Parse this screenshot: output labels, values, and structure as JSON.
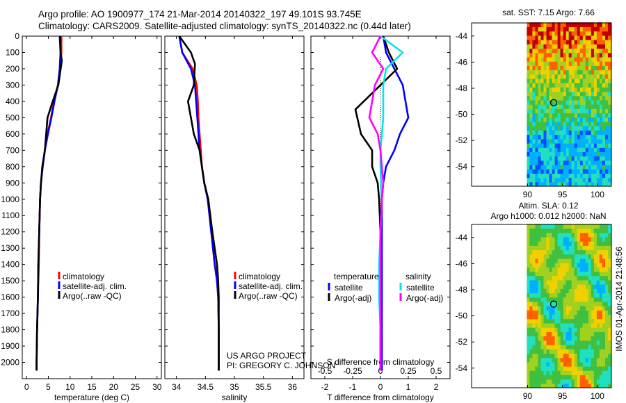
{
  "header": {
    "line1": "Argo profile: AO 1900977_174 21-Mar-2014 20140322_197 49.101S 93.745E",
    "line2": "Climatology: CARS2009. Satellite-adjusted climatology: synTS_20140322.nc (0.44d later)"
  },
  "colors": {
    "climatology": "#ff0000",
    "satellite": "#0000ff",
    "argo": "#000000",
    "salinity_satellite": "#00e5ee",
    "salinity_argo": "#ff00ff"
  },
  "footer": {
    "project": "US ARGO PROJECT",
    "pi": "PI: GREGORY C. JOHNSON",
    "imos_stamp": "IMOS 01-Apr-2014 21:48:56"
  },
  "chart_data": [
    {
      "type": "line",
      "xlabel": "temperature (deg C)",
      "ylabel": "",
      "xlim": [
        -1,
        31
      ],
      "ylim": [
        2100,
        0
      ],
      "xticks": [
        "0",
        "5",
        "10",
        "15",
        "20",
        "25",
        "30"
      ],
      "yticks": [
        "0",
        "100",
        "200",
        "300",
        "400",
        "500",
        "600",
        "700",
        "800",
        "900",
        "1000",
        "1100",
        "1200",
        "1300",
        "1400",
        "1500",
        "1600",
        "1700",
        "1800",
        "1900",
        "2000"
      ],
      "legend": [
        "climatology",
        "satellite-adj. clim.",
        "Argo(..raw -QC)"
      ],
      "legend_position": "lower-middle",
      "series": [
        {
          "name": "climatology",
          "color": "#ff0000",
          "x": [
            8,
            8,
            7.7,
            7.2,
            6.3,
            5.6,
            4.8,
            4.2,
            3.7,
            3.3,
            3.1,
            2.9,
            2.8,
            2.6,
            2.5,
            2.4,
            2.3,
            2.3
          ],
          "y": [
            0,
            100,
            200,
            300,
            400,
            500,
            600,
            700,
            800,
            900,
            1000,
            1200,
            1400,
            1600,
            1700,
            1800,
            2000,
            2050
          ]
        },
        {
          "name": "satellite-adj. clim.",
          "color": "#0000ff",
          "x": [
            7.6,
            7.8,
            7.6,
            7.2,
            6.4,
            5.7,
            4.9,
            4.2,
            3.7,
            3.3,
            3.1,
            2.9,
            2.7,
            2.6,
            2.5,
            2.4,
            2.3,
            2.3
          ],
          "y": [
            0,
            100,
            200,
            300,
            400,
            500,
            600,
            700,
            800,
            900,
            1000,
            1200,
            1400,
            1600,
            1700,
            1800,
            2000,
            2050
          ]
        },
        {
          "name": "Argo(..raw -QC)",
          "color": "#000000",
          "x": [
            7.7,
            7.8,
            8.1,
            7.3,
            6.0,
            4.8,
            4.5,
            4.2,
            3.6,
            3.3,
            3.1,
            2.9,
            2.7,
            2.6,
            2.5,
            2.4,
            2.3,
            2.3
          ],
          "y": [
            0,
            100,
            150,
            300,
            400,
            500,
            600,
            700,
            800,
            900,
            1000,
            1200,
            1400,
            1600,
            1700,
            1800,
            2000,
            2050
          ]
        }
      ]
    },
    {
      "type": "line",
      "xlabel": "salinity",
      "xlim": [
        33.8,
        36.2
      ],
      "ylim": [
        2100,
        0
      ],
      "xticks": [
        "34",
        "34.5",
        "35",
        "35.5",
        "36"
      ],
      "legend": [
        "climatology",
        "satellite-adj. clim.",
        "Argo(..raw -QC)"
      ],
      "legend_position": "lower-middle",
      "series": [
        {
          "name": "climatology",
          "color": "#ff0000",
          "x": [
            34.05,
            34.1,
            34.28,
            34.35,
            34.37,
            34.38,
            34.4,
            34.42,
            34.44,
            34.48,
            34.54,
            34.6,
            34.66,
            34.7,
            34.72,
            34.73,
            34.73,
            34.73
          ],
          "y": [
            0,
            100,
            200,
            300,
            400,
            500,
            600,
            700,
            800,
            900,
            1000,
            1200,
            1400,
            1500,
            1600,
            1800,
            2000,
            2050
          ]
        },
        {
          "name": "satellite-adj. clim.",
          "color": "#0000ff",
          "x": [
            34.05,
            34.1,
            34.25,
            34.32,
            34.34,
            34.36,
            34.38,
            34.4,
            34.44,
            34.48,
            34.54,
            34.6,
            34.66,
            34.7,
            34.72,
            34.73,
            34.73,
            34.73
          ],
          "y": [
            0,
            100,
            200,
            300,
            400,
            500,
            600,
            700,
            800,
            900,
            1000,
            1200,
            1400,
            1500,
            1600,
            1800,
            2000,
            2050
          ]
        },
        {
          "name": "Argo(..raw -QC)",
          "color": "#000000",
          "x": [
            34.05,
            34.25,
            34.32,
            34.3,
            34.2,
            34.25,
            34.3,
            34.4,
            34.44,
            34.48,
            34.55,
            34.62,
            34.7,
            34.72,
            34.73,
            34.73,
            34.73,
            34.73
          ],
          "y": [
            0,
            100,
            170,
            300,
            400,
            500,
            600,
            700,
            800,
            900,
            1000,
            1200,
            1400,
            1500,
            1600,
            1800,
            2000,
            2050
          ]
        }
      ]
    },
    {
      "type": "line",
      "xlabel": "T difference from climatology",
      "xlabel2": "S difference from climatology",
      "xlim": [
        -2.5,
        2.5
      ],
      "ylim": [
        2100,
        0
      ],
      "xticks": [
        "-2",
        "-1",
        "0",
        "1",
        "2"
      ],
      "xticks2": [
        "-0.5",
        "-0.25",
        "0",
        "0.25",
        "0.5"
      ],
      "legend_temperature_title": "temperature",
      "legend_salinity_title": "salinity",
      "legend": [
        "satellite",
        "Argo(-adj)",
        "satellite",
        "Argo(-adj)"
      ],
      "legend_position": "lower-middle",
      "series": [
        {
          "name": "temperature satellite",
          "color": "#0000ff",
          "x": [
            0.1,
            0.2,
            0.5,
            0.8,
            1.0,
            0.7,
            0.5,
            0.2,
            0.1,
            0.05,
            0.05,
            0.05,
            0.05,
            0.05,
            0.05,
            0.05
          ],
          "y": [
            0,
            100,
            200,
            300,
            500,
            600,
            700,
            800,
            900,
            1000,
            1200,
            1400,
            1600,
            1800,
            2000,
            2050
          ]
        },
        {
          "name": "temperature Argo(-adj)",
          "color": "#000000",
          "x": [
            0.1,
            0.3,
            0.6,
            0.0,
            -0.9,
            -0.7,
            -0.3,
            -0.3,
            -0.1,
            -0.05,
            0.0,
            0.0,
            0.0,
            0.0,
            0.0,
            0.0
          ],
          "y": [
            0,
            100,
            200,
            300,
            450,
            600,
            700,
            800,
            900,
            1000,
            1200,
            1400,
            1600,
            1800,
            2000,
            2050
          ]
        },
        {
          "name": "salinity satellite",
          "color": "#00e5ee",
          "x": [
            0.0,
            0.8,
            0.2,
            0.1,
            0.1,
            0.05,
            0.0,
            0.0,
            0.02,
            0.05,
            0.0,
            -0.05,
            -0.05,
            0.0,
            0.0,
            0.0
          ],
          "y": [
            0,
            100,
            200,
            300,
            500,
            600,
            700,
            800,
            900,
            1000,
            1200,
            1400,
            1600,
            1800,
            2000,
            2050
          ]
        },
        {
          "name": "salinity Argo(-adj)",
          "color": "#ff00ff",
          "x": [
            0.0,
            -0.3,
            0.1,
            -0.2,
            -0.4,
            -0.1,
            0.0,
            0.05,
            0.1,
            0.05,
            0.0,
            0.0,
            0.0,
            0.0,
            0.0,
            0.0
          ],
          "y": [
            0,
            100,
            200,
            300,
            500,
            600,
            700,
            800,
            900,
            1000,
            1200,
            1400,
            1600,
            1800,
            2000,
            2050
          ]
        }
      ]
    },
    {
      "type": "heatmap",
      "title": "sat. SST: 7.15 Argo: 7.66",
      "xticks": [
        "90",
        "95",
        "100"
      ],
      "yticks": [
        "-44",
        "-46",
        "-48",
        "-50",
        "-52",
        "-54"
      ],
      "xlim": [
        82,
        102
      ],
      "ylim": [
        -55.5,
        -43
      ],
      "marker": {
        "lon": 93.745,
        "lat": -49.101
      }
    },
    {
      "type": "heatmap",
      "title": "Altim. SLA: 0.12",
      "subtitle": "Argo h1000: 0.012 h2000: NaN",
      "xticks": [
        "90",
        "95",
        "100"
      ],
      "yticks": [
        "-44",
        "-46",
        "-48",
        "-50",
        "-52",
        "-54"
      ],
      "xlim": [
        82,
        102
      ],
      "ylim": [
        -55.5,
        -43
      ],
      "marker": {
        "lon": 93.745,
        "lat": -49.101
      }
    }
  ]
}
